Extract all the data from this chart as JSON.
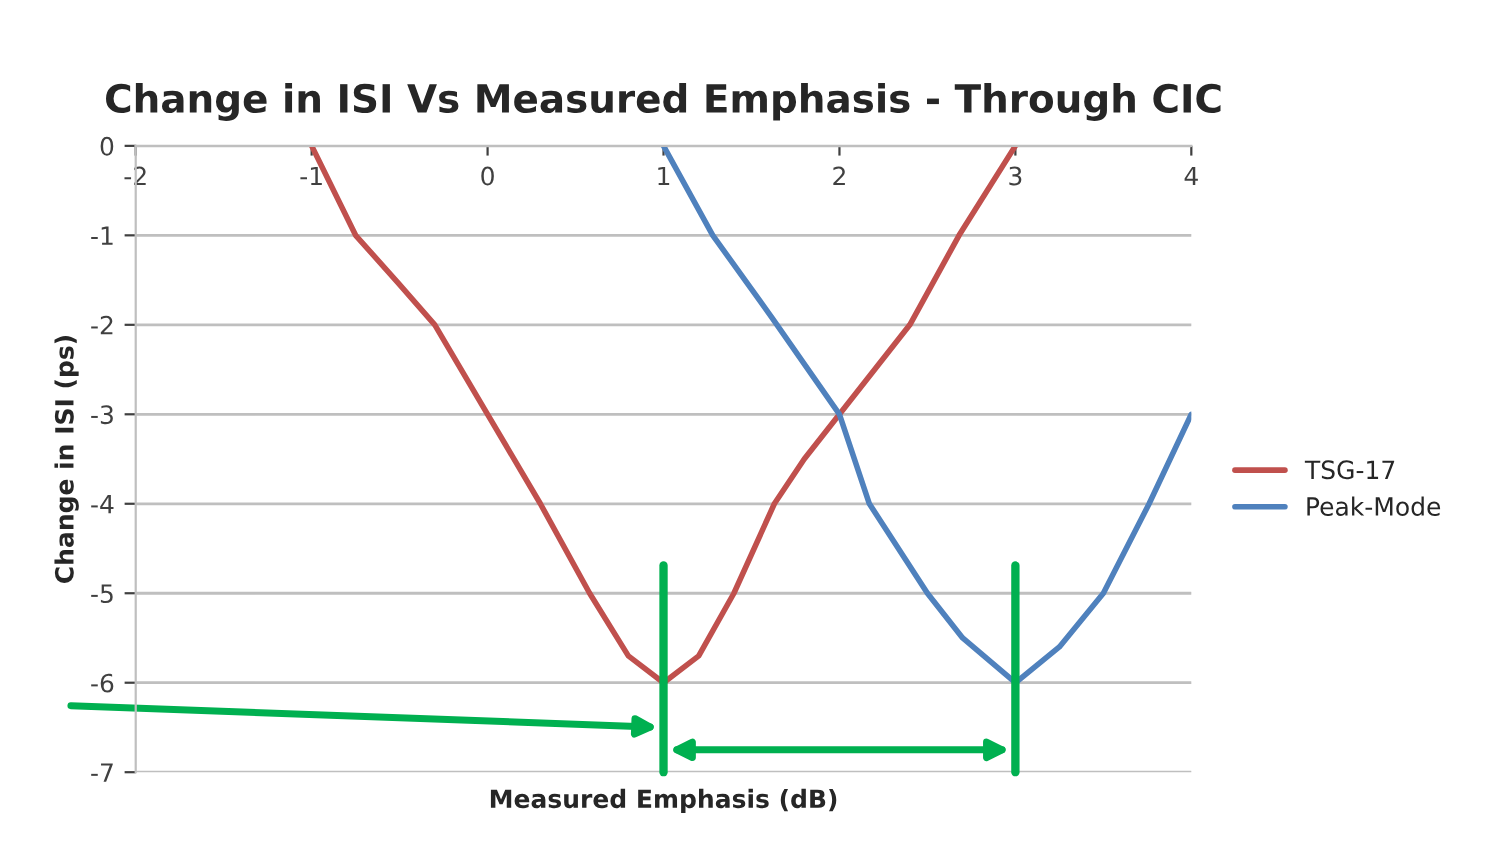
{
  "chart_data": {
    "type": "line",
    "title": "Change in ISI Vs Measured Emphasis - Through CIC",
    "xlabel": "Measured Emphasis (dB)",
    "ylabel": "Change in ISI (ps)",
    "series": [
      {
        "name": "TSG-17",
        "color": "#c0504d",
        "x": [
          -1,
          -0.75,
          -0.5,
          -0.3,
          0,
          0.3,
          0.58,
          0.8,
          1,
          1.2,
          1.4,
          1.63,
          1.8,
          2,
          2.4,
          2.68,
          3
        ],
        "values": [
          0,
          -1,
          -1.55,
          -2,
          -3,
          -4,
          -5,
          -5.7,
          -6,
          -5.7,
          -5,
          -4,
          -3.5,
          -3,
          -2,
          -1,
          0
        ]
      },
      {
        "name": "Peak-Mode",
        "color": "#4f81bd",
        "x": [
          1,
          1.28,
          1.62,
          2,
          2.17,
          2.5,
          2.7,
          3,
          3.25,
          3.5,
          3.76,
          4
        ],
        "values": [
          0,
          -1,
          -1.93,
          -3,
          -4,
          -5,
          -5.5,
          -6,
          -5.6,
          -5,
          -4,
          -3
        ]
      }
    ],
    "xlim": [
      -2,
      4
    ],
    "xticks": [
      -2,
      -1,
      0,
      1,
      2,
      3,
      4
    ],
    "ylim": [
      -7,
      0
    ],
    "yticks": [
      -7,
      -6,
      -5,
      -4,
      -3,
      -2,
      -1,
      0
    ],
    "grid": "y",
    "legend": "right",
    "ref_lines": [
      {
        "axis": "x",
        "value": 1,
        "color": "#00b050"
      },
      {
        "axis": "x",
        "value": 3,
        "color": "#00b050"
      }
    ]
  }
}
